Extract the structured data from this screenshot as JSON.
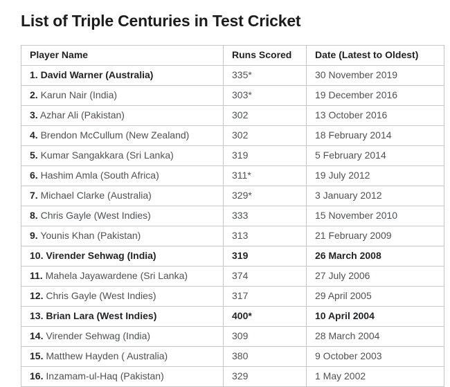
{
  "page": {
    "title": "List of Triple Centuries in Test Cricket"
  },
  "table": {
    "columns": [
      "Player Name",
      "Runs Scored",
      "Date (Latest to Oldest)"
    ],
    "rows": [
      {
        "rank": "1.",
        "player": "David Warner (Australia)",
        "runs": "335*",
        "date": "30 November 2019",
        "bold": "name"
      },
      {
        "rank": "2.",
        "player": "Karun Nair (India)",
        "runs": "303*",
        "date": "19 December 2016",
        "bold": "rank"
      },
      {
        "rank": "3.",
        "player": "Azhar Ali (Pakistan)",
        "runs": "302",
        "date": "13 October 2016",
        "bold": "rank"
      },
      {
        "rank": "4.",
        "player": "Brendon McCullum (New Zealand)",
        "runs": "302",
        "date": "18 February 2014",
        "bold": "rank"
      },
      {
        "rank": "5.",
        "player": "Kumar Sangakkara (Sri Lanka)",
        "runs": "319",
        "date": "5 February 2014",
        "bold": "rank"
      },
      {
        "rank": "6.",
        "player": "Hashim Amla (South Africa)",
        "runs": "311*",
        "date": "19 July 2012",
        "bold": "rank"
      },
      {
        "rank": "7.",
        "player": "Michael Clarke (Australia)",
        "runs": "329*",
        "date": "3 January 2012",
        "bold": "rank"
      },
      {
        "rank": "8.",
        "player": "Chris Gayle (West Indies)",
        "runs": "333",
        "date": "15 November 2010",
        "bold": "rank"
      },
      {
        "rank": "9.",
        "player": "Younis Khan (Pakistan)",
        "runs": "313",
        "date": "21 February 2009",
        "bold": "rank"
      },
      {
        "rank": "10.",
        "player": "Virender Sehwag (India)",
        "runs": "319",
        "date": "26 March 2008",
        "bold": "row"
      },
      {
        "rank": "11.",
        "player": "Mahela Jayawardene (Sri Lanka)",
        "runs": "374",
        "date": "27 July 2006",
        "bold": "rank"
      },
      {
        "rank": "12.",
        "player": "Chris Gayle (West Indies)",
        "runs": "317",
        "date": "29 April 2005",
        "bold": "rank"
      },
      {
        "rank": "13.",
        "player": "Brian Lara (West Indies)",
        "runs": "400*",
        "date": "10 April 2004",
        "bold": "row"
      },
      {
        "rank": "14.",
        "player": "Virender Sehwag (India)",
        "runs": "309",
        "date": "28 March 2004",
        "bold": "rank"
      },
      {
        "rank": "15.",
        "player": "Matthew Hayden ( Australia)",
        "runs": "380",
        "date": "9 October 2003",
        "bold": "rank"
      },
      {
        "rank": "16.",
        "player": "Inzamam-ul-Haq (Pakistan)",
        "runs": "329",
        "date": "1 May 2002",
        "bold": "rank"
      }
    ]
  },
  "colors": {
    "background": "#ffffff",
    "table_border": "#c6c6c6",
    "title_text": "#1b1c1e",
    "bold_text": "#212327",
    "regular_text": "#4e5154"
  }
}
